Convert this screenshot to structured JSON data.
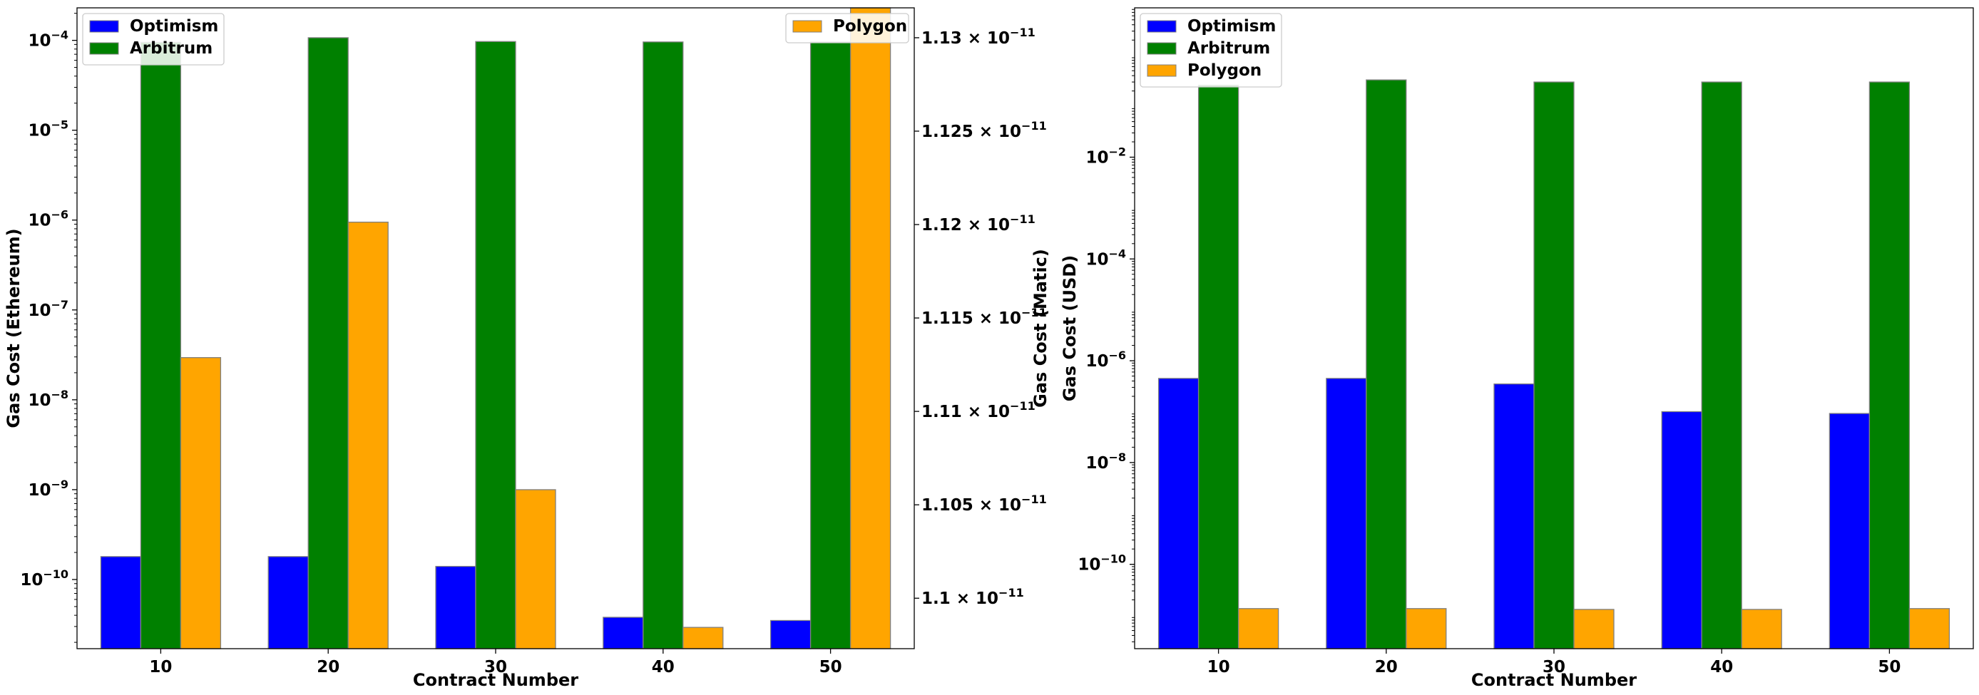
{
  "chart_data": [
    {
      "type": "bar",
      "categories": [
        "10",
        "20",
        "30",
        "40",
        "50"
      ],
      "xlabel": "Contract Number",
      "ylabel": "Gas Cost (Ethereum)",
      "ylabel_right": "Gas Cost (Matic)",
      "yscale": "log",
      "ylim": [
        1.7e-11,
        0.00023
      ],
      "yticks": [
        {
          "value": 1e-10,
          "base": "10",
          "exp": "−10"
        },
        {
          "value": 1e-09,
          "base": "10",
          "exp": "−9"
        },
        {
          "value": 1e-08,
          "base": "10",
          "exp": "−8"
        },
        {
          "value": 1e-07,
          "base": "10",
          "exp": "−7"
        },
        {
          "value": 1e-06,
          "base": "10",
          "exp": "−6"
        },
        {
          "value": 1e-05,
          "base": "10",
          "exp": "−5"
        },
        {
          "value": 0.0001,
          "base": "10",
          "exp": "−4"
        }
      ],
      "ylim_right": [
        1.0973e-11,
        1.1316e-11
      ],
      "yticks_right": [
        {
          "value": 1.1e-11,
          "mant": "1.1 × 10",
          "exp": "−11"
        },
        {
          "value": 1.105e-11,
          "mant": "1.105 × 10",
          "exp": "−11"
        },
        {
          "value": 1.11e-11,
          "mant": "1.11 × 10",
          "exp": "−11"
        },
        {
          "value": 1.115e-11,
          "mant": "1.115 × 10",
          "exp": "−11"
        },
        {
          "value": 1.12e-11,
          "mant": "1.12 × 10",
          "exp": "−11"
        },
        {
          "value": 1.125e-11,
          "mant": "1.125 × 10",
          "exp": "−11"
        },
        {
          "value": 1.13e-11,
          "mant": "1.13 × 10",
          "exp": "−11"
        }
      ],
      "series": [
        {
          "name": "Optimism",
          "color": "#0000ff",
          "axis": "left",
          "values": [
            1.8e-10,
            1.8e-10,
            1.4e-10,
            3.8e-11,
            3.5e-11
          ]
        },
        {
          "name": "Arbitrum",
          "color": "#008000",
          "axis": "left",
          "values": [
            9.5e-05,
            0.000107,
            9.7e-05,
            9.6e-05,
            9.6e-05
          ]
        },
        {
          "name": "Polygon",
          "color": "#ffa500",
          "axis": "right",
          "values": [
            1.11288e-11,
            1.12013e-11,
            1.10581e-11,
            1.09844e-11,
            1.1316e-11
          ]
        }
      ],
      "legends": [
        {
          "position": "top-left",
          "series": [
            "Optimism",
            "Arbitrum"
          ]
        },
        {
          "position": "top-right",
          "series": [
            "Polygon"
          ]
        }
      ]
    },
    {
      "type": "bar",
      "categories": [
        "10",
        "20",
        "30",
        "40",
        "50"
      ],
      "xlabel": "Contract Number",
      "ylabel": "Gas Cost (USD)",
      "yscale": "log",
      "ylim": [
        2.2e-12,
        8.6
      ],
      "yticks": [
        {
          "value": 1e-10,
          "base": "10",
          "exp": "−10"
        },
        {
          "value": 1e-08,
          "base": "10",
          "exp": "−8"
        },
        {
          "value": 1e-06,
          "base": "10",
          "exp": "−6"
        },
        {
          "value": 0.0001,
          "base": "10",
          "exp": "−4"
        },
        {
          "value": 0.01,
          "base": "10",
          "exp": "−2"
        }
      ],
      "series": [
        {
          "name": "Optimism",
          "color": "#0000ff",
          "values": [
            4.5e-07,
            4.5e-07,
            3.5e-07,
            1e-07,
            9.2e-08
          ]
        },
        {
          "name": "Arbitrum",
          "color": "#008000",
          "values": [
            0.26,
            0.33,
            0.3,
            0.3,
            0.3
          ]
        },
        {
          "name": "Polygon",
          "color": "#ffa500",
          "values": [
            1.35e-11,
            1.35e-11,
            1.3e-11,
            1.3e-11,
            1.35e-11
          ]
        }
      ],
      "legends": [
        {
          "position": "top-left",
          "series": [
            "Optimism",
            "Arbitrum",
            "Polygon"
          ]
        }
      ]
    }
  ]
}
